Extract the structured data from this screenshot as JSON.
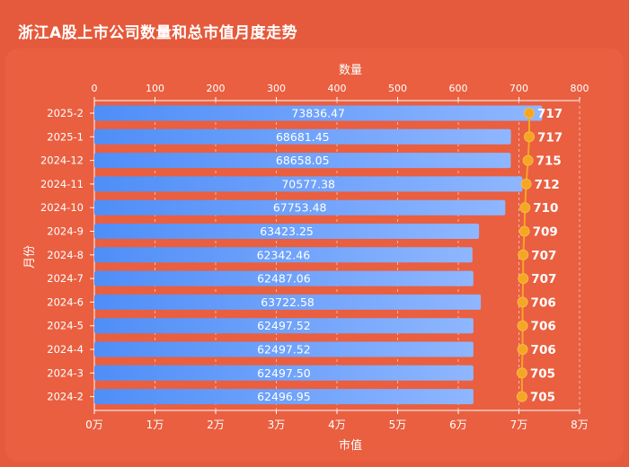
{
  "title": "浙江A股上市公司数量和总市值月度走势",
  "chart_data": {
    "type": "bar",
    "title": "浙江A股上市公司数量和总市值月度走势",
    "categories": [
      "2025-2",
      "2025-1",
      "2024-12",
      "2024-11",
      "2024-10",
      "2024-9",
      "2024-8",
      "2024-7",
      "2024-6",
      "2024-5",
      "2024-4",
      "2024-3",
      "2024-2"
    ],
    "bar_series": {
      "axis_label": "市值",
      "values": [
        73836.47,
        68681.45,
        68658.05,
        70577.38,
        67753.48,
        63423.25,
        62342.46,
        62487.06,
        63722.58,
        62497.52,
        62497.52,
        62497.5,
        62496.95
      ],
      "value_labels": [
        "73836.47",
        "68681.45",
        "68658.05",
        "70577.38",
        "67753.48",
        "63423.25",
        "62342.46",
        "62487.06",
        "63722.58",
        "62497.52",
        "62497.52",
        "62497.50",
        "62496.95"
      ],
      "color_start": "#4f8ef7",
      "color_end": "#8fb6ff",
      "xlim": [
        0,
        80000
      ],
      "ticks": [
        0,
        10000,
        20000,
        30000,
        40000,
        50000,
        60000,
        70000,
        80000
      ],
      "tick_labels": [
        "0万",
        "1万",
        "2万",
        "3万",
        "4万",
        "5万",
        "6万",
        "7万",
        "8万"
      ]
    },
    "line_series": {
      "axis_label": "数量",
      "values": [
        717,
        717,
        715,
        712,
        710,
        709,
        707,
        707,
        706,
        706,
        706,
        705,
        705
      ],
      "value_labels": [
        "717",
        "717",
        "715",
        "712",
        "710",
        "709",
        "707",
        "707",
        "706",
        "706",
        "706",
        "705",
        "705"
      ],
      "color": "#f5a623",
      "xlim": [
        0,
        800
      ],
      "ticks": [
        0,
        100,
        200,
        300,
        400,
        500,
        600,
        700,
        800
      ],
      "tick_labels": [
        "0",
        "100",
        "200",
        "300",
        "400",
        "500",
        "600",
        "700",
        "800"
      ]
    },
    "ylabel": "月份",
    "grid": true
  }
}
